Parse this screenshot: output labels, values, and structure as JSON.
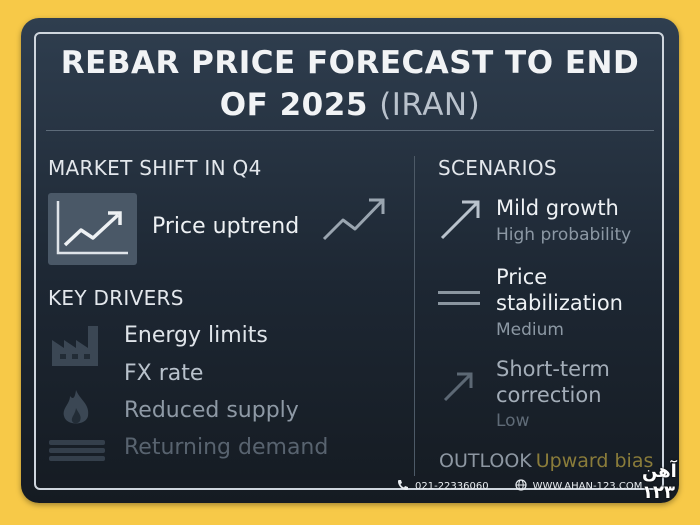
{
  "title": {
    "line1": "REBAR PRICE FORECAST TO END",
    "line2_main": "OF 2025",
    "line2_accent": "(IRAN)"
  },
  "market_shift": {
    "heading": "MARKET SHIFT IN Q4",
    "trend_label": "Price uptrend"
  },
  "key_drivers": {
    "heading": "KEY DRIVERS",
    "items": [
      "Energy limits",
      "FX rate",
      "Reduced supply",
      "Returning demand"
    ]
  },
  "scenarios": {
    "heading": "SCENARIOS",
    "items": [
      {
        "title": "Mild growth",
        "likelihood": "High probability"
      },
      {
        "title_line1": "Price",
        "title_line2": "stabilization",
        "likelihood": "Medium"
      },
      {
        "title_line1": "Short-term",
        "title_line2": "correction",
        "likelihood": "Low"
      }
    ]
  },
  "outlook": {
    "label": "OUTLOOK",
    "value": "Upward bias"
  },
  "footer": {
    "phone": "021-22336060",
    "website": "WWW.AHAN-123.COM"
  },
  "logo": {
    "text": "آهن ۱۲۳"
  },
  "colors": {
    "background": "#f7c948",
    "card": "#1d2733",
    "text": "#eef1f4"
  }
}
